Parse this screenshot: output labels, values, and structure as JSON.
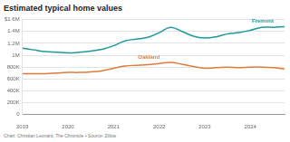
{
  "chart_data": {
    "type": "line",
    "title": "Estimated typical home values",
    "caption": "Chart: Christian Leonard, The Chronicle • Source: Zillow",
    "categories": [
      "2019",
      null,
      null,
      null,
      "2020",
      null,
      null,
      null,
      "2021",
      null,
      null,
      null,
      "2022",
      null,
      null,
      null,
      "2023",
      null,
      null,
      null,
      "2024",
      null,
      null,
      null
    ],
    "series": [
      {
        "name": "Fremont",
        "color": "#1a9a9a",
        "values": [
          1120000,
          1090000,
          1060000,
          1050000,
          1040000,
          1050000,
          1070000,
          1100000,
          1160000,
          1240000,
          1270000,
          1300000,
          1380000,
          1470000,
          1400000,
          1320000,
          1290000,
          1310000,
          1360000,
          1380000,
          1420000,
          1470000,
          1470000,
          1480000
        ]
      },
      {
        "name": "Oakland",
        "color": "#e07b39",
        "values": [
          690000,
          690000,
          690000,
          700000,
          710000,
          710000,
          720000,
          740000,
          780000,
          820000,
          830000,
          840000,
          860000,
          880000,
          850000,
          810000,
          780000,
          790000,
          800000,
          790000,
          800000,
          800000,
          790000,
          770000
        ]
      }
    ],
    "ylim": [
      0,
      1600000
    ],
    "yticks": [
      0,
      {
        "value": 200000,
        "label": "200K"
      },
      {
        "value": 400000,
        "label": "400K"
      },
      {
        "value": 600000,
        "label": "600K"
      },
      {
        "value": 800000,
        "label": "800K"
      },
      {
        "value": 1000000,
        "label": "1M"
      },
      {
        "value": 1200000,
        "label": "1.2M"
      },
      {
        "value": 1400000,
        "label": "1.4M"
      },
      {
        "value": 1600000,
        "label": "$1.6M"
      }
    ],
    "grid": true
  }
}
